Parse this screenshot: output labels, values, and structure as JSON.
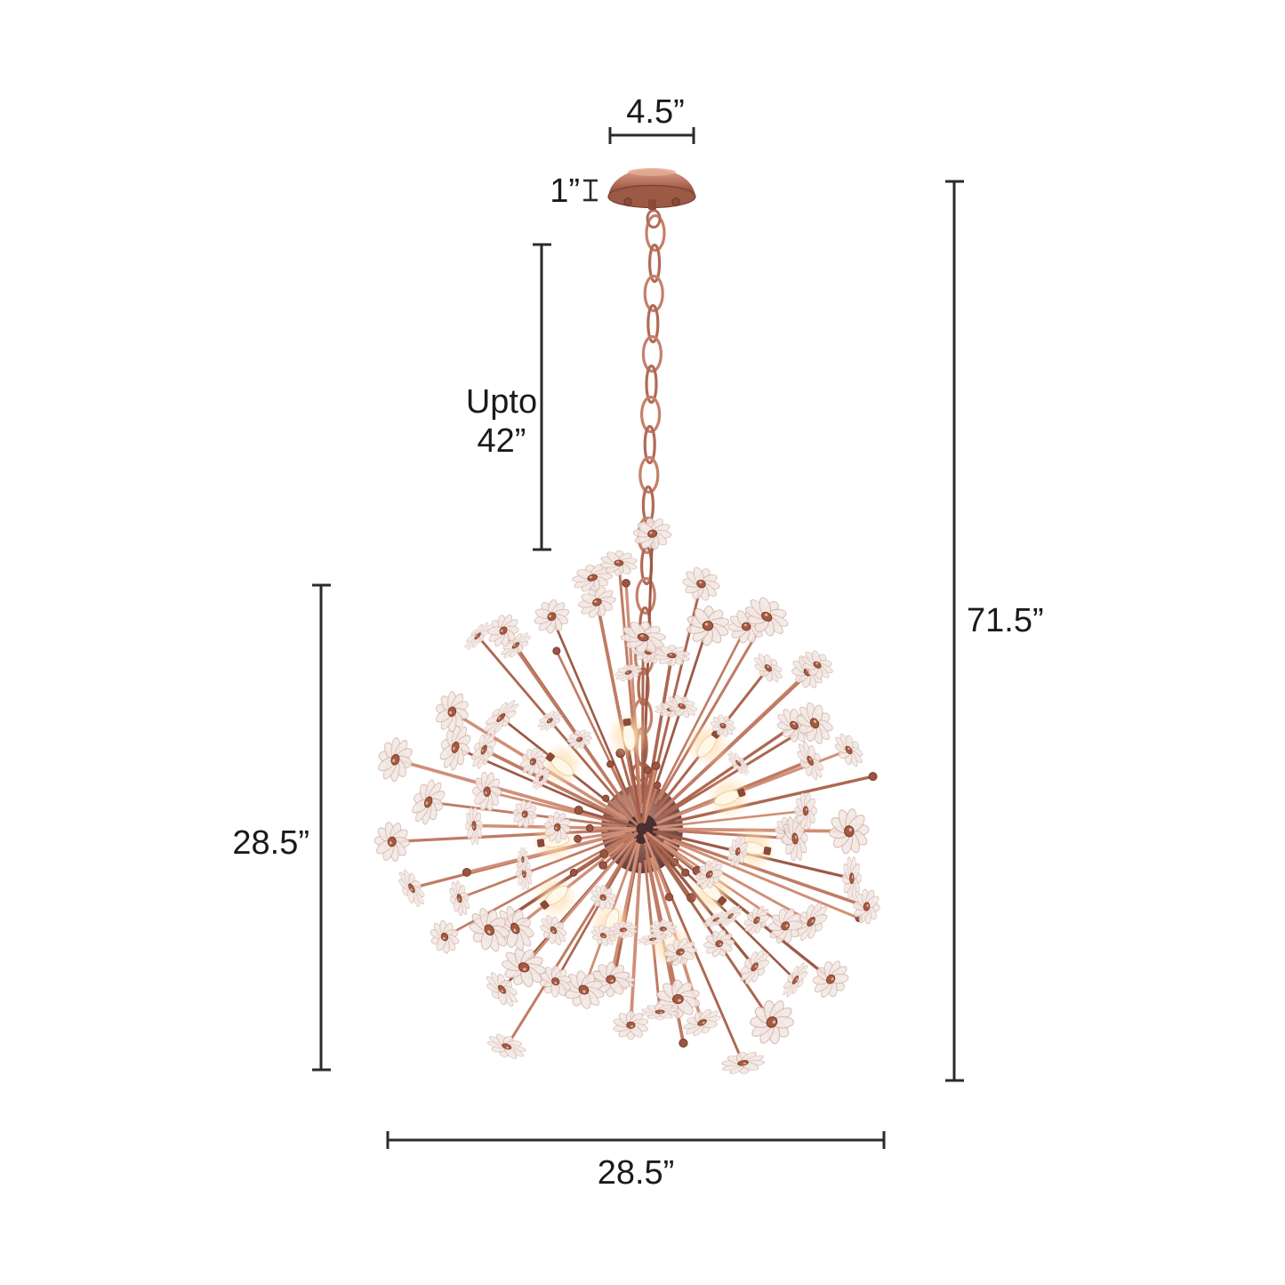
{
  "diagram": {
    "type": "product-dimension-diagram",
    "subject": "sputnik-crystal-chandelier"
  },
  "dimensions": {
    "canopy_width": "4.5”",
    "canopy_height": "1”",
    "chain_length_line1": "Upto",
    "chain_length_line2": "42”",
    "total_height": "71.5”",
    "fixture_height": "28.5”",
    "fixture_width": "28.5”"
  },
  "colors": {
    "background": "#ffffff",
    "dimension_line": "#2b2b2b",
    "label_text": "#1a1a1a",
    "copper_palette": [
      "#c07b64",
      "#ad6750",
      "#d08f77",
      "#9c5a46"
    ],
    "copper_dark": "#8a4a38",
    "copper_mid": "#b06b56",
    "copper_light": "#ecc2ad",
    "crystal_petal": "#f3e7e3",
    "crystal_edge": "#c7a69d",
    "bulb_glow": "#ffd9a6",
    "bulb_white": "#fff7e8",
    "sphere_dark": "#3a2326"
  }
}
